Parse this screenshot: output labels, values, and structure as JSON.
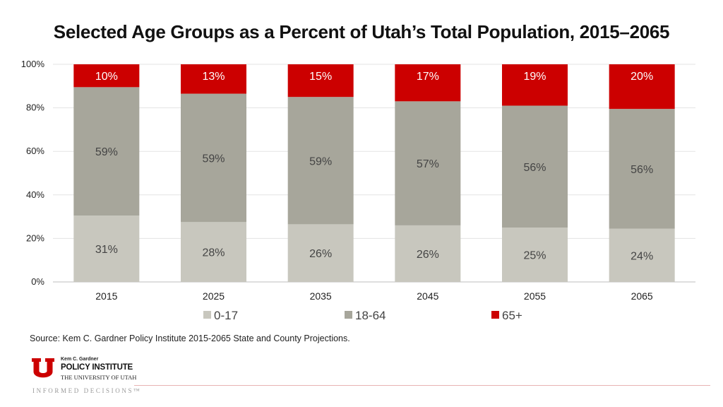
{
  "chart_data": {
    "type": "bar",
    "stacked": true,
    "title": "Selected Age Groups as a Percent of Utah’s Total Population, 2015–2065",
    "xlabel": "",
    "ylabel": "",
    "ylim": [
      0,
      100
    ],
    "y_ticks": [
      "0%",
      "20%",
      "40%",
      "60%",
      "80%",
      "100%"
    ],
    "y_tick_values": [
      0,
      20,
      40,
      60,
      80,
      100
    ],
    "categories": [
      "2015",
      "2025",
      "2035",
      "2045",
      "2055",
      "2065"
    ],
    "series": [
      {
        "name": "0-17",
        "color": "#c8c7be",
        "values": [
          31,
          28,
          26,
          26,
          25,
          24
        ],
        "labels": [
          "31%",
          "28%",
          "26%",
          "26%",
          "25%",
          "24%"
        ],
        "stack_tops": [
          30.5,
          27.5,
          26.5,
          26,
          25,
          24.5
        ]
      },
      {
        "name": "18-64",
        "color": "#a7a69b",
        "values": [
          59,
          59,
          59,
          57,
          56,
          56
        ],
        "labels": [
          "59%",
          "59%",
          "59%",
          "57%",
          "56%",
          "56%"
        ],
        "stack_tops": [
          89.5,
          86.5,
          85,
          83,
          81,
          79.5
        ]
      },
      {
        "name": "65+",
        "color": "#cc0000",
        "values": [
          10,
          13,
          15,
          17,
          19,
          20
        ],
        "labels": [
          "10%",
          "13%",
          "15%",
          "17%",
          "19%",
          "20%"
        ],
        "stack_tops": [
          100,
          100,
          100,
          100,
          100,
          100
        ]
      }
    ],
    "grid": true,
    "legend_position": "bottom"
  },
  "source_note": "Source: Kem C. Gardner Policy Institute 2015-2065 State and County Projections.",
  "branding": {
    "line1": "Kem C. Gardner",
    "line2": "POLICY INSTITUTE",
    "line3": "THE UNIVERSITY OF UTAH",
    "tagline": "INFORMED DECISIONS™",
    "accent_color": "#cc0000"
  }
}
